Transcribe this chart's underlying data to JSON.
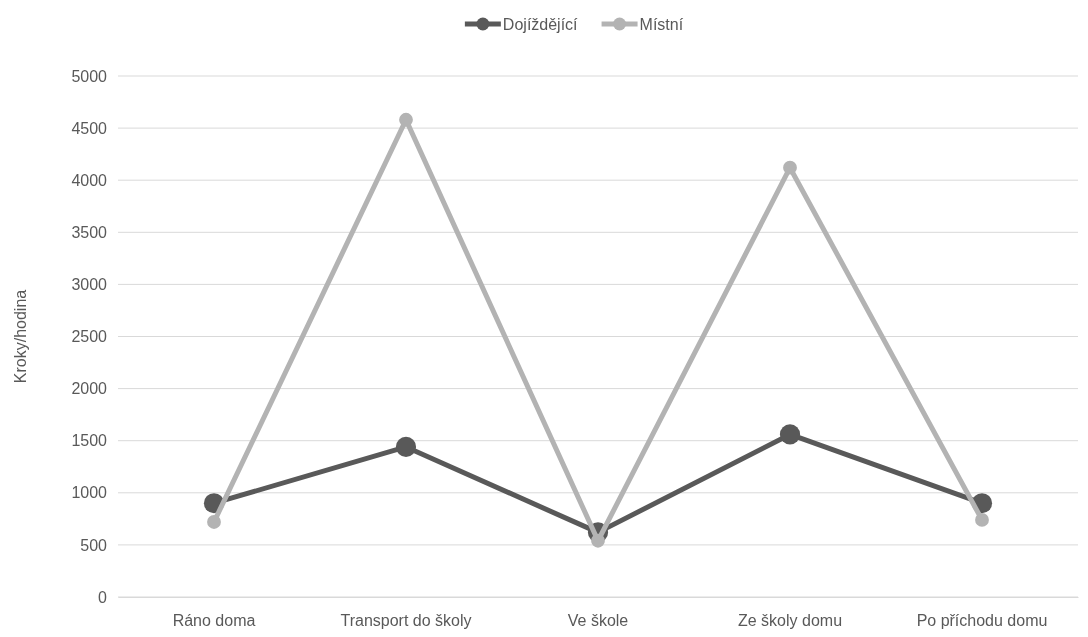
{
  "chart_data": {
    "type": "line",
    "ylabel": "Kroky/hodina",
    "categories": [
      "Ráno doma",
      "Transport do školy",
      "Ve škole",
      "Ze školy domu",
      "Po příchodu domu"
    ],
    "series": [
      {
        "name": "Dojíždějící",
        "color": "#595959",
        "values": [
          900,
          1440,
          620,
          1560,
          900
        ]
      },
      {
        "name": "Místní",
        "color": "#b3b3b3",
        "values": [
          720,
          4580,
          540,
          4120,
          740
        ]
      }
    ],
    "ylim": [
      0,
      5000
    ],
    "yticks": [
      0,
      500,
      1000,
      1500,
      2000,
      2500,
      3000,
      3500,
      4000,
      4500,
      5000
    ],
    "grid": "y",
    "legend": "top",
    "marker": "circle",
    "line_style": "solid"
  }
}
